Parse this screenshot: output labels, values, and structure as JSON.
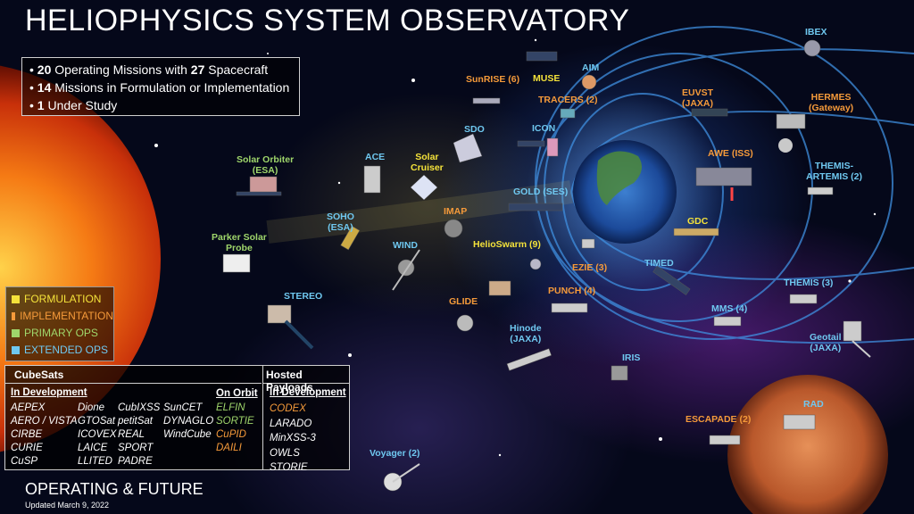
{
  "title": "HELIOPHYSICS SYSTEM OBSERVATORY",
  "stats": [
    {
      "num": "20",
      "text": " Operating Missions with ",
      "num2": "27",
      "text2": " Spacecraft"
    },
    {
      "num": "14",
      "text": " Missions in Formulation or Implementation"
    },
    {
      "num": "1",
      "text": " Under Study"
    }
  ],
  "legend": [
    {
      "label": "FORMULATION",
      "color": "#f4e23a"
    },
    {
      "label": "IMPLEMENTATION",
      "color": "#f59a3a"
    },
    {
      "label": "PRIMARY OPS",
      "color": "#9fd66b"
    },
    {
      "label": "EXTENDED OPS",
      "color": "#6fc8f0"
    }
  ],
  "cubesats": {
    "header": "CubeSats",
    "hosted_header": "Hosted Payloads",
    "in_dev_label": "In Development",
    "on_orbit_label": "On Orbit",
    "hosted_in_dev_label": "In Development",
    "col1": [
      "AEPEX",
      "AERO / VISTA",
      "CIRBE",
      "CURIE",
      "CuSP"
    ],
    "col2": [
      "Dione",
      "GTOSat",
      "ICOVEX",
      "LAICE",
      "LLITED"
    ],
    "col3": [
      "CubIXSS",
      "petitSat",
      "REAL",
      "SPORT",
      "PADRE"
    ],
    "col4": [
      "SunCET",
      "DYNAGLO",
      "WindCube"
    ],
    "on_orbit": [
      "ELFIN",
      "SORTIE",
      "CuPID",
      "DAILI"
    ],
    "hosted": [
      "CODEX",
      "LARADO",
      "MinXSS-3",
      "OWLS",
      "STORIE"
    ]
  },
  "missions": {
    "solar_orbiter": "Solar Orbiter\n(ESA)",
    "ace": "ACE",
    "solar_cruiser": "Solar\nCruiser",
    "parker": "Parker Solar\nProbe",
    "soho": "SOHO\n(ESA)",
    "wind": "WIND",
    "imap": "IMAP",
    "stereo": "STEREO",
    "glide": "GLIDE",
    "sunrise": "SunRISE (6)",
    "muse": "MUSE",
    "aim": "AIM",
    "tracers": "TRACERS (2)",
    "sdo": "SDO",
    "icon": "ICON",
    "gold": "GOLD (SES)",
    "helioswarm": "HelioSwarm (9)",
    "ezie": "EZIE (3)",
    "punch": "PUNCH (4)",
    "hinode": "Hinode\n(JAXA)",
    "iris": "IRIS",
    "timed": "TIMED",
    "gdc": "GDC",
    "awe": "AWE (ISS)",
    "euvst": "EUVST\n(JAXA)",
    "ibex": "IBEX",
    "hermes": "HERMES\n(Gateway)",
    "themis_artemis": "THEMIS-\nARTEMIS (2)",
    "themis": "THEMIS (3)",
    "mms": "MMS (4)",
    "geotail": "Geotail\n(JAXA)",
    "rad": "RAD",
    "escapade": "ESCAPADE (2)",
    "voyager": "Voyager (2)"
  },
  "footer": "OPERATING & FUTURE",
  "updated": "Updated March 9, 2022"
}
